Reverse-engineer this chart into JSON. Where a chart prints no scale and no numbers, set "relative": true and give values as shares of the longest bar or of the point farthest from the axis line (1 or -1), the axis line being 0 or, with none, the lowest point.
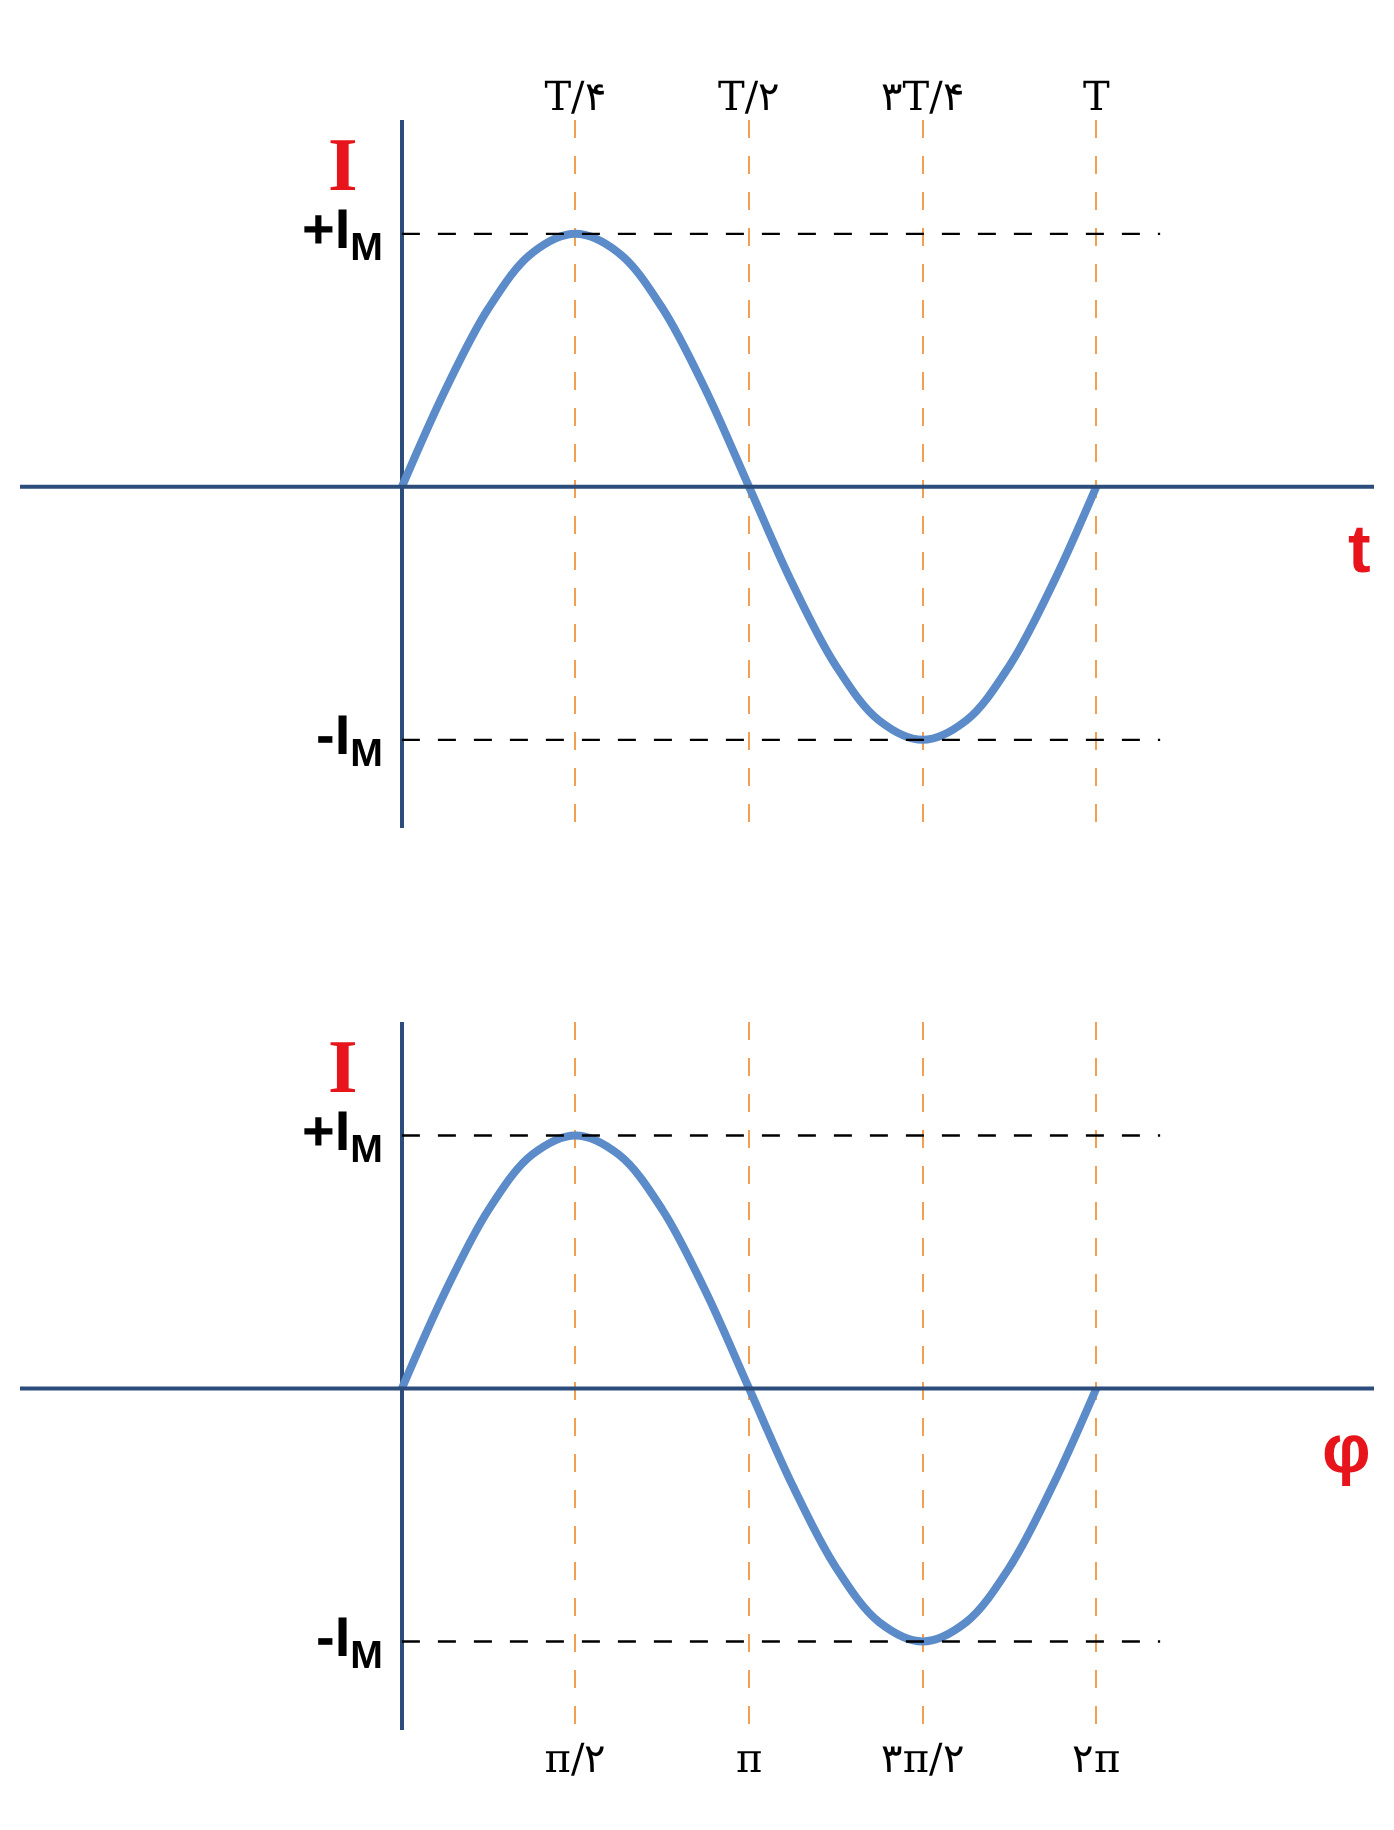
{
  "chart_data": [
    {
      "type": "line",
      "relative": true,
      "xlabel": "t",
      "ylabel": "I",
      "categories": [
        null,
        null,
        null,
        null,
        "T/۴",
        null,
        null,
        null,
        "T/۲",
        null,
        null,
        null,
        "۳T/۴",
        null,
        null,
        null,
        "T"
      ],
      "series": [
        {
          "color": "#5b8bc9",
          "values": [
            0,
            0.383,
            0.707,
            0.924,
            1,
            0.924,
            0.707,
            0.383,
            0,
            -0.383,
            -0.707,
            -0.924,
            -1,
            -0.924,
            -0.707,
            -0.383,
            0
          ]
        }
      ],
      "ref_lines": [
        {
          "axis": "y",
          "value": 1,
          "label": "+I$_{M}$",
          "color": "#000000",
          "line_style": "dashed"
        },
        {
          "axis": "y",
          "value": -1,
          "label": "-I$_{M}$",
          "color": "#000000",
          "line_style": "dashed"
        },
        {
          "axis": "y",
          "value": 0,
          "color": "#2c4d7c",
          "line_style": "solid"
        }
      ],
      "grid": "x"
    },
    {
      "type": "line",
      "relative": true,
      "xlabel": "φ",
      "ylabel": "I",
      "categories": [
        null,
        null,
        null,
        null,
        "π/۲",
        null,
        null,
        null,
        "π",
        null,
        null,
        null,
        "۳π/۲",
        null,
        null,
        null,
        "۲π"
      ],
      "series": [
        {
          "color": "#5b8bc9",
          "values": [
            0,
            0.383,
            0.707,
            0.924,
            1,
            0.924,
            0.707,
            0.383,
            0,
            -0.383,
            -0.707,
            -0.924,
            -1,
            -0.924,
            -0.707,
            -0.383,
            0
          ]
        }
      ],
      "ref_lines": [
        {
          "axis": "y",
          "value": 1,
          "label": "+I$_{M}$",
          "color": "#000000",
          "line_style": "dashed"
        },
        {
          "axis": "y",
          "value": -1,
          "label": "-I$_{M}$",
          "color": "#000000",
          "line_style": "dashed"
        },
        {
          "axis": "y",
          "value": 0,
          "color": "#2c4d7c",
          "line_style": "solid"
        }
      ],
      "grid": "x"
    }
  ]
}
